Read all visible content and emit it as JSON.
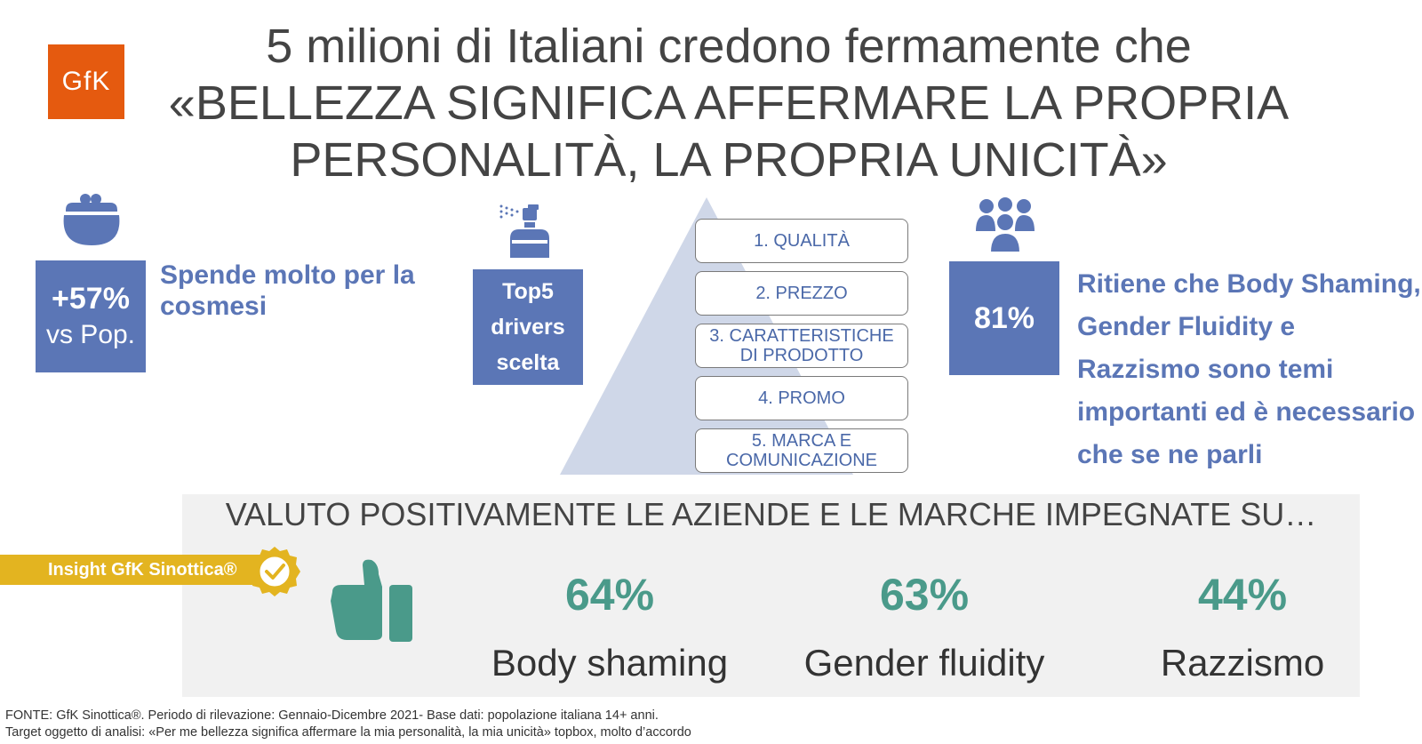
{
  "logo": {
    "text": "GfK"
  },
  "title": {
    "line1": "5 milioni di Italiani credono fermamente che",
    "line2": "«BELLEZZA SIGNIFICA AFFERMARE LA PROPRIA",
    "line3": "PERSONALITÀ, LA PROPRIA UNICITÀ»"
  },
  "stat_spend": {
    "value": "+57%",
    "sub": "vs Pop.",
    "description": "Spende molto per la cosmesi",
    "icon": "purse-icon"
  },
  "stat_drivers": {
    "line1": "Top5",
    "line2": "drivers",
    "line3": "scelta",
    "icon": "perfume-icon"
  },
  "drivers": [
    {
      "label": "1. QUALITÀ"
    },
    {
      "label": "2. PREZZO"
    },
    {
      "label": "3. CARATTERISTICHE DI PRODOTTO"
    },
    {
      "label": "4. PROMO"
    },
    {
      "label": "5. MARCA E COMUNICAZIONE"
    }
  ],
  "stat_topics": {
    "value": "81%",
    "description": "Ritiene che Body Shaming, Gender Fluidity e Razzismo sono temi importanti ed è necessario che se ne parli",
    "icon": "people-group-icon"
  },
  "panel": {
    "title": "VALUTO POSITIVAMENTE LE AZIENDE E LE MARCHE IMPEGNATE SU…",
    "insight_label": "Insight GfK Sinottica®",
    "items": [
      {
        "value": "64%",
        "label": "Body shaming"
      },
      {
        "value": "63%",
        "label": "Gender fluidity"
      },
      {
        "value": "44%",
        "label": "Razzismo"
      }
    ]
  },
  "source": {
    "line1": "FONTE: GfK Sinottica®. Periodo di rilevazione: Gennaio-Dicembre 2021- Base dati: popolazione italiana 14+ anni.",
    "line2": "Target oggetto di analisi: «Per me bellezza significa affermare la mia personalità, la mia unicità» topbox, molto d’accordo"
  },
  "colors": {
    "blue": "#5b76b6",
    "orange": "#e55a0f",
    "teal": "#4a9a8a",
    "gold": "#e3b420",
    "panel": "#f1f1f1"
  }
}
